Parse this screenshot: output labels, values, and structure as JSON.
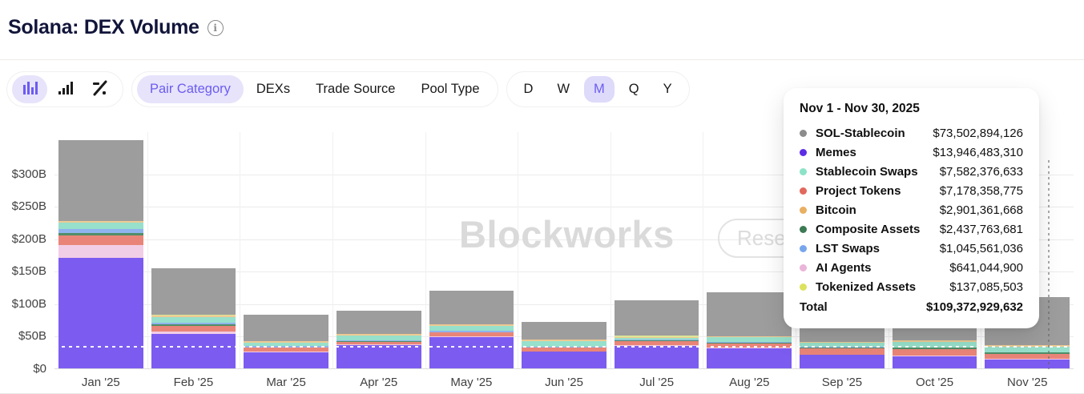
{
  "header": {
    "title": "Solana: DEX Volume"
  },
  "toolbar": {
    "chart_types": [
      {
        "name": "stacked-bar-chart",
        "selected": true
      },
      {
        "name": "ascending-bar-chart",
        "selected": false
      },
      {
        "name": "percent-view",
        "selected": false
      }
    ],
    "tabs": [
      {
        "label": "Pair Category",
        "selected": true
      },
      {
        "label": "DEXs",
        "selected": false
      },
      {
        "label": "Trade Source",
        "selected": false
      },
      {
        "label": "Pool Type",
        "selected": false
      }
    ],
    "ranges": [
      {
        "label": "D",
        "selected": false
      },
      {
        "label": "W",
        "selected": false
      },
      {
        "label": "M",
        "selected": true
      },
      {
        "label": "Q",
        "selected": false
      },
      {
        "label": "Y",
        "selected": false
      }
    ]
  },
  "watermark": {
    "brand": "Blockworks",
    "button": "Research"
  },
  "tooltip": {
    "title": "Nov 1 - Nov 30, 2025",
    "rows": [
      {
        "label": "SOL-Stablecoin",
        "value": "$73,502,894,126",
        "color": "#8c8c8c"
      },
      {
        "label": "Memes",
        "value": "$13,946,483,310",
        "color": "#5d2de6"
      },
      {
        "label": "Stablecoin Swaps",
        "value": "$7,582,376,633",
        "color": "#8ce3c8"
      },
      {
        "label": "Project Tokens",
        "value": "$7,178,358,775",
        "color": "#e2685c"
      },
      {
        "label": "Bitcoin",
        "value": "$2,901,361,668",
        "color": "#e9af62"
      },
      {
        "label": "Composite Assets",
        "value": "$2,437,763,681",
        "color": "#3c7a54"
      },
      {
        "label": "LST Swaps",
        "value": "$1,045,561,036",
        "color": "#77a6ec"
      },
      {
        "label": "AI Agents",
        "value": "$641,044,900",
        "color": "#eab5d9"
      },
      {
        "label": "Tokenized Assets",
        "value": "$137,085,503",
        "color": "#dde25e"
      }
    ],
    "total_label": "Total",
    "total_value": "$109,372,929,632"
  },
  "chart_data": {
    "type": "bar",
    "stacked": true,
    "title": "Solana: DEX Volume",
    "unit": "USD billions",
    "categories": [
      "Jan '25",
      "Feb '25",
      "Mar '25",
      "Apr '25",
      "May '25",
      "Jun '25",
      "Jul '25",
      "Aug '25",
      "Sep '25",
      "Oct '25",
      "Nov '25"
    ],
    "y_ticks": [
      {
        "label": "$0",
        "value": 0
      },
      {
        "label": "$50B",
        "value": 50
      },
      {
        "label": "$100B",
        "value": 100
      },
      {
        "label": "$150B",
        "value": 150
      },
      {
        "label": "$200B",
        "value": 200
      },
      {
        "label": "$250B",
        "value": 250
      },
      {
        "label": "$300B",
        "value": 300
      }
    ],
    "ylim": [
      0,
      365
    ],
    "grid": true,
    "reference_line_value": 36,
    "hovered_category": "Nov '25",
    "series": [
      {
        "name": "Memes",
        "color": "#7c5cf0",
        "values": [
          170,
          53,
          25,
          36,
          48,
          26,
          35,
          31,
          21,
          19,
          13.9
        ]
      },
      {
        "name": "AI Agents",
        "color": "#f2cde6",
        "values": [
          20,
          4,
          1.5,
          1,
          1,
          0.5,
          0.5,
          0.5,
          0.5,
          0.5,
          0.64
        ]
      },
      {
        "name": "Project Tokens",
        "color": "#e98578",
        "values": [
          15,
          9,
          5,
          4,
          6,
          5,
          7,
          7,
          9,
          10,
          7.18
        ]
      },
      {
        "name": "Composite Assets",
        "color": "#4f8e68",
        "values": [
          3,
          1.5,
          1,
          1,
          1,
          1,
          1,
          1.5,
          1.5,
          2,
          2.44
        ]
      },
      {
        "name": "LST Swaps",
        "color": "#8fb3ee",
        "values": [
          6,
          3,
          1.5,
          1.5,
          1.5,
          1,
          1,
          1,
          1,
          1,
          1.05
        ]
      },
      {
        "name": "Stablecoin Swaps",
        "color": "#97e0cb",
        "values": [
          10,
          9,
          6,
          7,
          8,
          9,
          2,
          7,
          6,
          8,
          7.58
        ]
      },
      {
        "name": "Bitcoin",
        "color": "#eeca92",
        "values": [
          3,
          2.5,
          2,
          2.5,
          2.5,
          1.5,
          1.5,
          1.5,
          1.5,
          2.5,
          2.9
        ]
      },
      {
        "name": "Tokenized Assets",
        "color": "#dde596",
        "values": [
          0.5,
          0.5,
          0.5,
          0.5,
          0.5,
          0.5,
          2.5,
          0.5,
          0.5,
          0.5,
          0.14
        ]
      },
      {
        "name": "SOL-Stablecoin",
        "color": "#9d9d9d",
        "values": [
          124,
          71.5,
          40.5,
          35.5,
          51.5,
          27.5,
          54.5,
          67,
          59,
          71.5,
          73.5
        ]
      }
    ]
  }
}
